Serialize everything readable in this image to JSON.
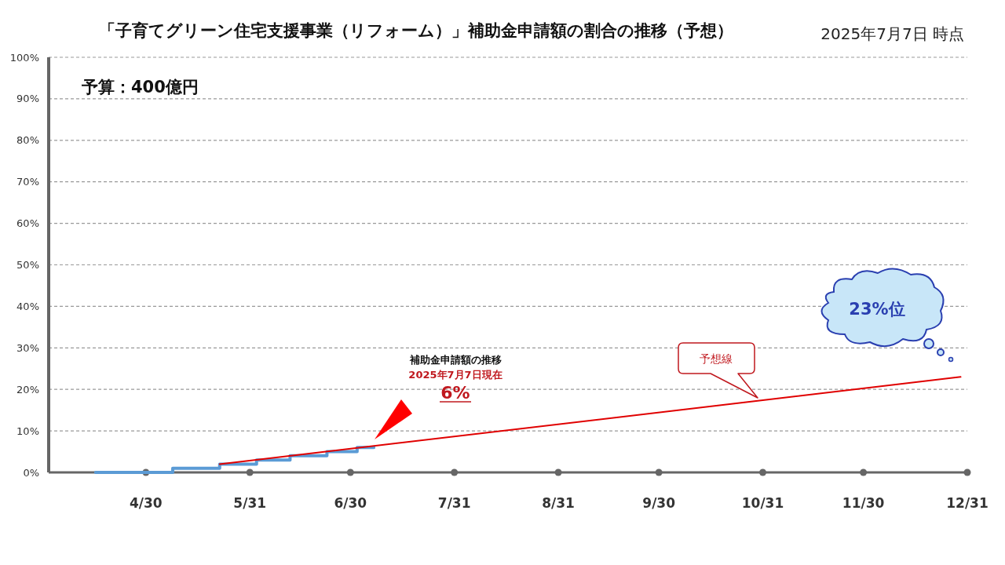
{
  "chart_data": {
    "type": "step",
    "title": "「子育てグリーン住宅支援事業（リフォーム）」補助金申請額の割合の推移（予想）",
    "subtitle": "2025年7月7日 時点",
    "xlim": [
      "--04-01",
      "--12-31"
    ],
    "xticks": [
      {
        "value": "--04-30",
        "label": "4/30"
      },
      {
        "value": "--05-31",
        "label": "5/31"
      },
      {
        "value": "--06-30",
        "label": "6/30"
      },
      {
        "value": "--07-31",
        "label": "7/31"
      },
      {
        "value": "--08-31",
        "label": "8/31"
      },
      {
        "value": "--09-30",
        "label": "9/30"
      },
      {
        "value": "--10-31",
        "label": "10/31"
      },
      {
        "value": "--11-30",
        "label": "11/30"
      },
      {
        "value": "--12-31",
        "label": "12/31"
      }
    ],
    "ylim": [
      0,
      100
    ],
    "yticks": [
      {
        "value": 0,
        "label": "0%"
      },
      {
        "value": 10,
        "label": "10%"
      },
      {
        "value": 20,
        "label": "20%"
      },
      {
        "value": 30,
        "label": "30%"
      },
      {
        "value": 40,
        "label": "40%"
      },
      {
        "value": 50,
        "label": "50%"
      },
      {
        "value": 60,
        "label": "60%"
      },
      {
        "value": 70,
        "label": "70%"
      },
      {
        "value": 80,
        "label": "80%"
      },
      {
        "value": 90,
        "label": "90%"
      },
      {
        "value": 100,
        "label": "100%"
      }
    ],
    "grid": "y",
    "series": [
      {
        "type": "step",
        "color": "#5b9bd5",
        "x": [
          "--04-15",
          "--05-08",
          "--05-22",
          "--06-02",
          "--06-12",
          "--06-23",
          "--07-02",
          "--07-07"
        ],
        "values": [
          0,
          1,
          2,
          3,
          4,
          5,
          6,
          6
        ]
      },
      {
        "type": "line",
        "color": "#e00000",
        "x": [
          "--05-22",
          "--12-29"
        ],
        "values": [
          2,
          23
        ]
      }
    ],
    "annotations": [
      "予算：400億円",
      "補助金申請額の推移",
      "2025年7月7日現在",
      "6%",
      "予想線",
      "23%位"
    ]
  }
}
